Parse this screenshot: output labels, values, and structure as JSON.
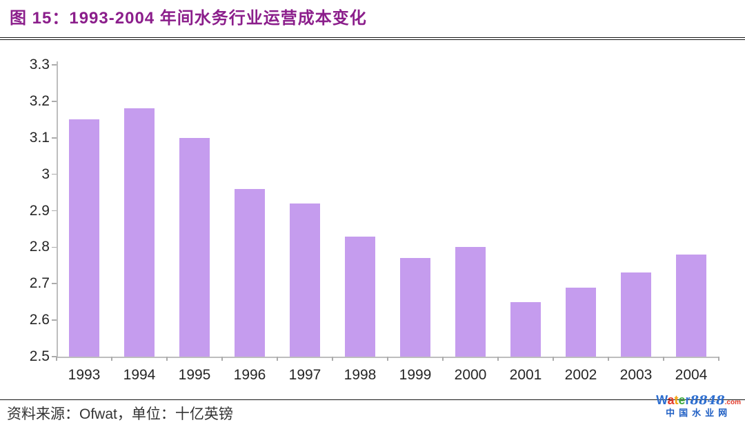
{
  "figure": {
    "label": "图 15：",
    "title": "图 15：1993-2004 年间水务行业运营成本变化",
    "source_prefix": "资料来源：",
    "source_name": "Ofwat",
    "source_suffix": "，单位：十亿英镑"
  },
  "colors": {
    "title": "#8B1E8B",
    "bar": "#C59CEE",
    "axis": "#BDBDBD",
    "tick": "#ABABAB",
    "tick_label": "#262626",
    "rule": "#141414"
  },
  "chart_data": {
    "type": "bar",
    "title": "1993-2004 年间水务行业运营成本变化",
    "categories": [
      "1993",
      "1994",
      "1995",
      "1996",
      "1997",
      "1998",
      "1999",
      "2000",
      "2001",
      "2002",
      "2003",
      "2004"
    ],
    "values": [
      3.15,
      3.18,
      3.1,
      2.96,
      2.92,
      2.83,
      2.77,
      2.8,
      2.65,
      2.69,
      2.73,
      2.78
    ],
    "xlabel": "",
    "ylabel": "",
    "unit": "十亿英镑",
    "ylim": [
      2.5,
      3.3
    ],
    "ytick_step": 0.1,
    "ytick_labels_top_down": [
      "3.3",
      "3.2",
      "3.1",
      "3",
      "2.9",
      "2.8",
      "2.7",
      "2.6",
      "2.5"
    ],
    "grid": false,
    "legend": false,
    "bar_color": "#C59CEE",
    "axis_color": "#BDBDBD"
  },
  "logo": {
    "letters": [
      {
        "ch": "W",
        "color": "#2E6FD0"
      },
      {
        "ch": "a",
        "color": "#E23A2A"
      },
      {
        "ch": "t",
        "color": "#F2A20D"
      },
      {
        "ch": "e",
        "color": "#3FAA3F"
      },
      {
        "ch": "r",
        "color": "#2E6FD0"
      }
    ],
    "number": "8848",
    "number_color": "#2E6FD0",
    "tld": ".com",
    "tld_color": "#E23A2A",
    "subtitle": "中国水业网",
    "subtitle_color": "#1F5FC4"
  }
}
